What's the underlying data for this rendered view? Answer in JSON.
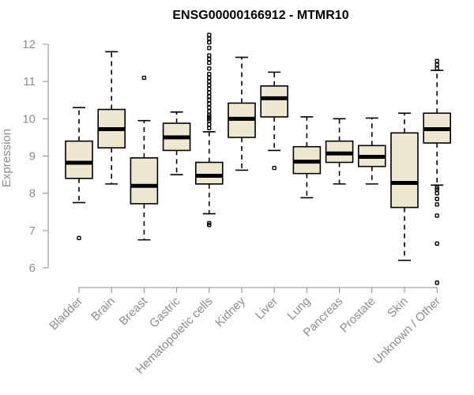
{
  "chart_data": {
    "type": "boxplot",
    "title": "ENSG00000166912 - MTMR10",
    "xlabel": "",
    "ylabel": "Expression",
    "ylim": [
      6,
      12
    ],
    "yticks": [
      6,
      7,
      8,
      9,
      10,
      11,
      12
    ],
    "box_color": "#efe8d1",
    "categories": [
      "Bladder",
      "Brain",
      "Breast",
      "Gastric",
      "Hematopoietic cells",
      "Kidney",
      "Liver",
      "Lung",
      "Pancreas",
      "Prostate",
      "Skin",
      "Unknown / Other"
    ],
    "boxes": [
      {
        "name": "Bladder",
        "whisker_low": 7.75,
        "q1": 8.4,
        "median": 8.82,
        "q3": 9.4,
        "whisker_high": 10.3,
        "outliers": [
          6.8
        ]
      },
      {
        "name": "Brain",
        "whisker_low": 8.25,
        "q1": 9.22,
        "median": 9.72,
        "q3": 10.25,
        "whisker_high": 11.8,
        "outliers": []
      },
      {
        "name": "Breast",
        "whisker_low": 6.75,
        "q1": 7.72,
        "median": 8.2,
        "q3": 8.95,
        "whisker_high": 9.95,
        "outliers": [
          11.1
        ]
      },
      {
        "name": "Gastric",
        "whisker_low": 8.5,
        "q1": 9.15,
        "median": 9.5,
        "q3": 9.88,
        "whisker_high": 10.18,
        "outliers": []
      },
      {
        "name": "Hematopoietic cells",
        "whisker_low": 7.45,
        "q1": 8.25,
        "median": 8.47,
        "q3": 8.83,
        "whisker_high": 9.65,
        "outliers": [
          7.15,
          7.2,
          9.75,
          9.85,
          9.95,
          10.0,
          10.05,
          10.1,
          10.2,
          10.3,
          10.4,
          10.5,
          10.6,
          10.7,
          10.8,
          10.9,
          11.0,
          11.1,
          11.2,
          11.35,
          11.5,
          11.6,
          11.7,
          11.9,
          12.05,
          12.15,
          12.25
        ]
      },
      {
        "name": "Kidney",
        "whisker_low": 8.62,
        "q1": 9.5,
        "median": 10.0,
        "q3": 10.42,
        "whisker_high": 11.65,
        "outliers": []
      },
      {
        "name": "Liver",
        "whisker_low": 9.15,
        "q1": 10.05,
        "median": 10.55,
        "q3": 10.88,
        "whisker_high": 11.25,
        "outliers": [
          8.68
        ]
      },
      {
        "name": "Lung",
        "whisker_low": 7.88,
        "q1": 8.53,
        "median": 8.85,
        "q3": 9.25,
        "whisker_high": 10.05,
        "outliers": []
      },
      {
        "name": "Pancreas",
        "whisker_low": 8.25,
        "q1": 8.83,
        "median": 9.07,
        "q3": 9.4,
        "whisker_high": 10.0,
        "outliers": []
      },
      {
        "name": "Prostate",
        "whisker_low": 8.25,
        "q1": 8.72,
        "median": 8.98,
        "q3": 9.28,
        "whisker_high": 10.02,
        "outliers": []
      },
      {
        "name": "Skin",
        "whisker_low": 6.2,
        "q1": 7.62,
        "median": 8.28,
        "q3": 9.62,
        "whisker_high": 10.15,
        "outliers": []
      },
      {
        "name": "Unknown / Other",
        "whisker_low": 8.22,
        "q1": 9.35,
        "median": 9.72,
        "q3": 10.15,
        "whisker_high": 11.3,
        "outliers": [
          5.6,
          6.65,
          7.4,
          7.7,
          7.85,
          8.0,
          8.1,
          8.15,
          11.35,
          11.45,
          11.55
        ]
      }
    ]
  }
}
